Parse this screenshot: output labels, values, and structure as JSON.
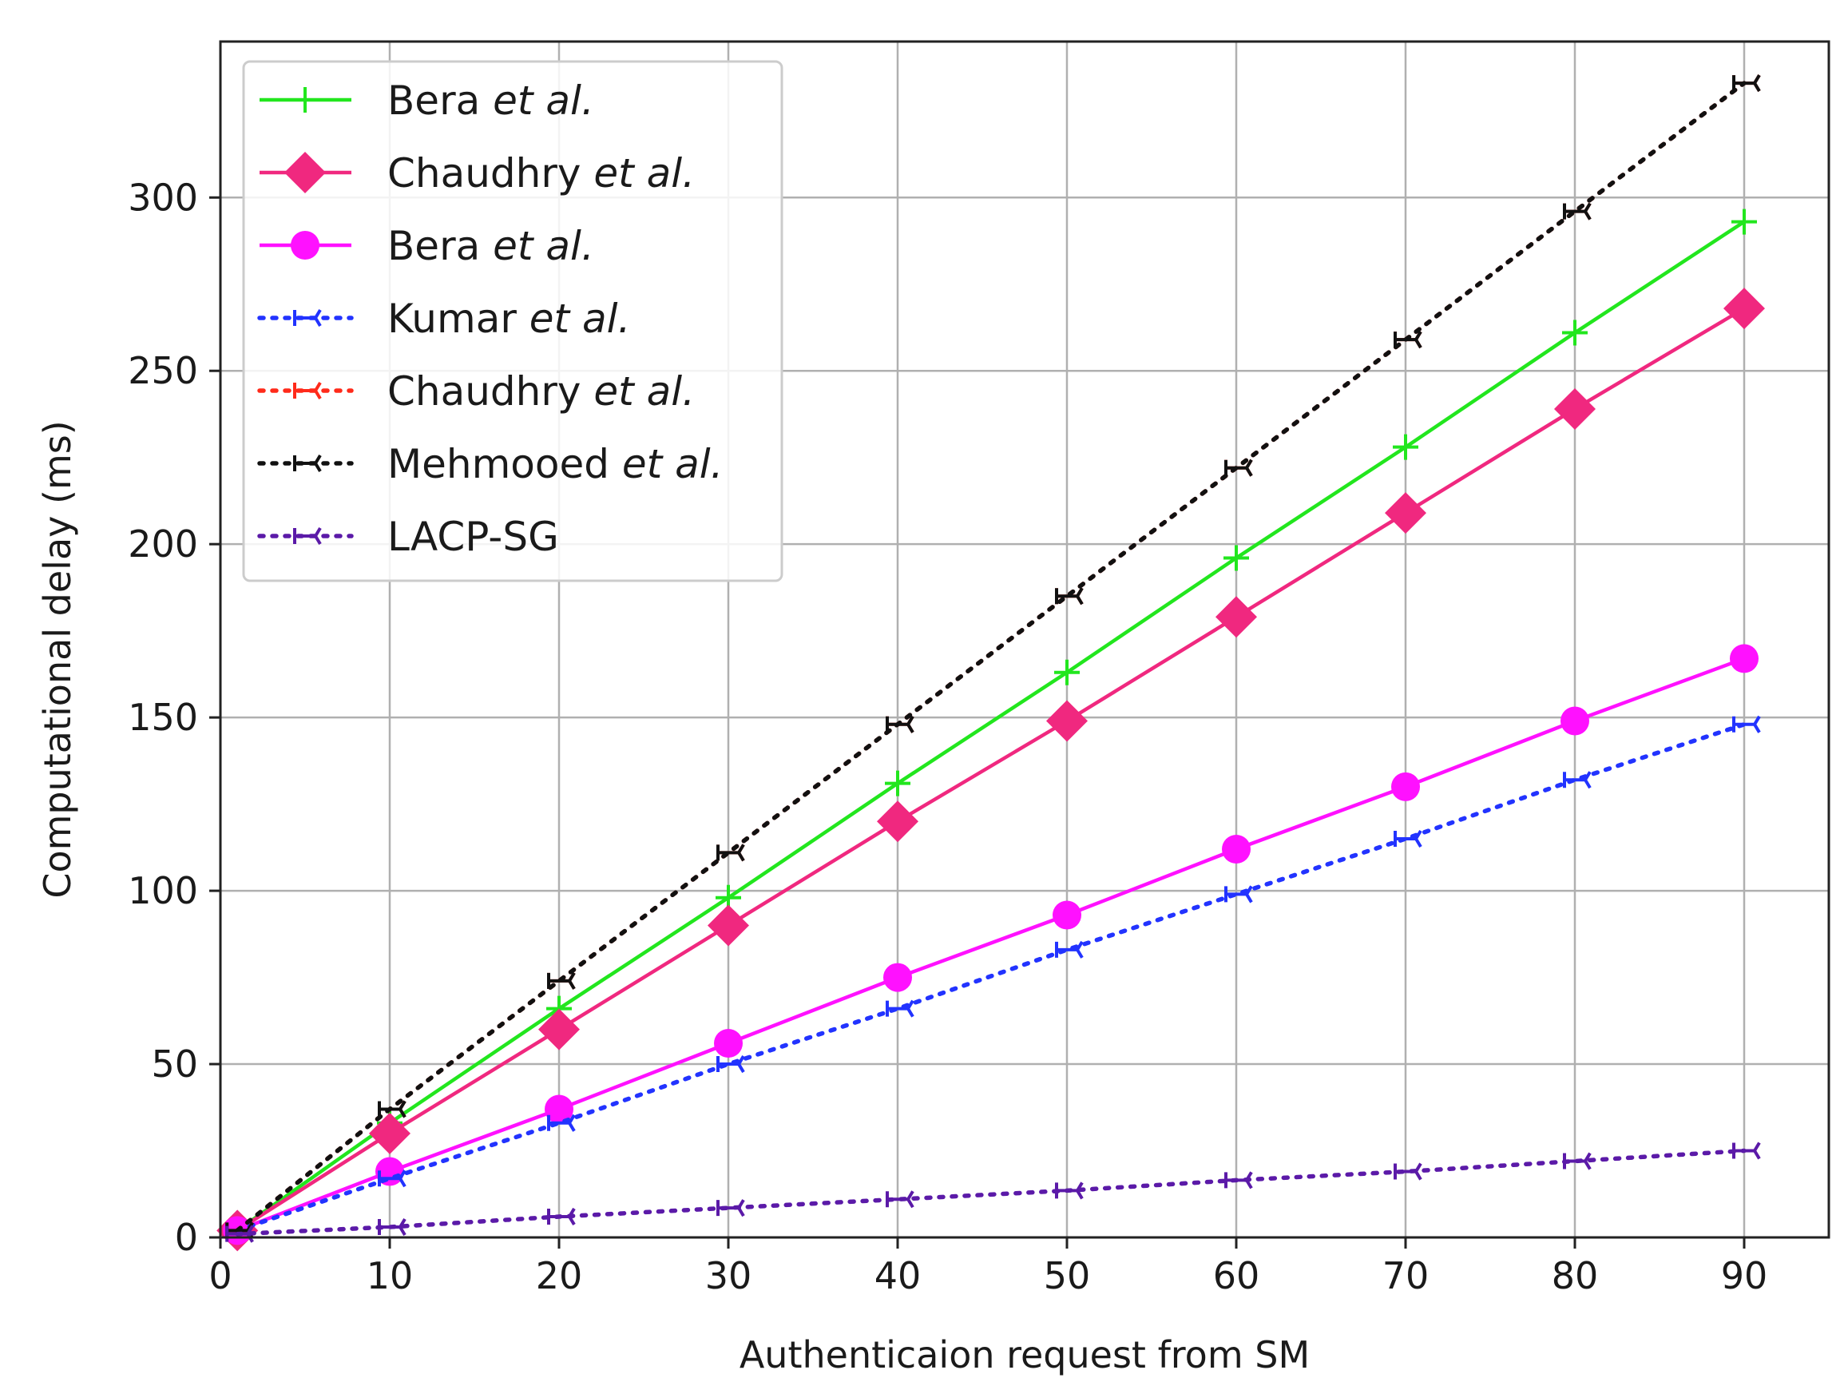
{
  "chart_data": {
    "type": "line",
    "title": "",
    "xlabel": "Authenticaion request from SM",
    "ylabel": "Computational delay  (ms)",
    "xlim": [
      0,
      95
    ],
    "ylim": [
      0,
      345
    ],
    "xticks": [
      0,
      10,
      20,
      30,
      40,
      50,
      60,
      70,
      80,
      90
    ],
    "yticks": [
      0,
      50,
      100,
      150,
      200,
      250,
      300
    ],
    "grid": true,
    "legend_position": "top-left",
    "x": [
      1,
      10,
      20,
      30,
      40,
      50,
      60,
      70,
      80,
      90
    ],
    "series": [
      {
        "name": "Bera",
        "suffix": "et al.",
        "color": "#22e61e",
        "line": "solid",
        "marker": "plus",
        "values": [
          2,
          33,
          66,
          98,
          131,
          163,
          196,
          228,
          261,
          293
        ]
      },
      {
        "name": "Chaudhry",
        "suffix": "et al.",
        "color": "#f0287f",
        "line": "solid",
        "marker": "diamond",
        "values": [
          2,
          30,
          60,
          90,
          120,
          149,
          179,
          209,
          239,
          268
        ]
      },
      {
        "name": "Bera",
        "suffix": "et al.",
        "color": "#ff11ff",
        "line": "solid",
        "marker": "circle",
        "values": [
          2,
          19,
          37,
          56,
          75,
          93,
          112,
          130,
          149,
          167
        ]
      },
      {
        "name": "Kumar",
        "suffix": "et al.",
        "color": "#2233ff",
        "line": "dotted",
        "marker": "tri",
        "values": [
          2,
          17,
          33,
          50,
          66,
          83,
          99,
          115,
          132,
          148
        ]
      },
      {
        "name": "Chaudhry",
        "suffix": "et al.",
        "color": "#ff2a1a",
        "line": "dotted",
        "marker": "tri",
        "values": [
          2,
          37,
          74,
          111,
          148,
          185,
          222,
          259,
          296,
          333
        ]
      },
      {
        "name": "Mehmooed",
        "suffix": "et al.",
        "color": "#111111",
        "line": "dotted",
        "marker": "tri",
        "values": [
          2,
          37,
          74,
          111,
          148,
          185,
          222,
          259,
          296,
          333
        ]
      },
      {
        "name": "LACP-SG",
        "suffix": "",
        "color": "#5b1aa8",
        "line": "dotted",
        "marker": "tri",
        "values": [
          1,
          3,
          6,
          8.5,
          11,
          13.5,
          16.5,
          19,
          22,
          25
        ]
      }
    ]
  }
}
